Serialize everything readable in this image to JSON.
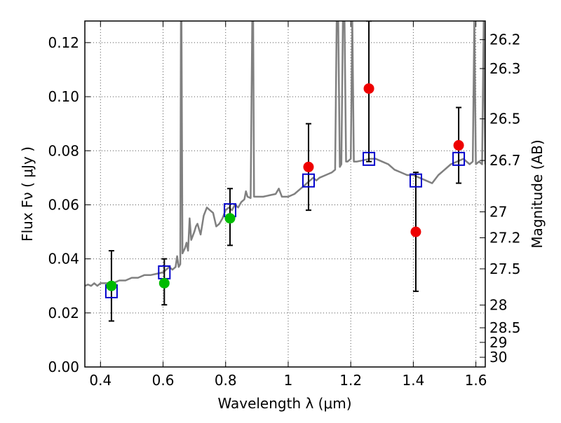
{
  "chart_data": {
    "type": "scatter",
    "title": "",
    "xlabel": "Wavelength  λ (μm)",
    "ylabel": "Flux  Fν  ( μJy )",
    "y2label": "Magnitude (AB)",
    "xlim": [
      0.35,
      1.63
    ],
    "ylim": [
      0.0,
      0.128
    ],
    "grid": true,
    "legend": "none",
    "x_ticks": [
      {
        "v": 0.4,
        "label": "0.4"
      },
      {
        "v": 0.6,
        "label": "0.6"
      },
      {
        "v": 0.8,
        "label": "0.8"
      },
      {
        "v": 1.0,
        "label": "1"
      },
      {
        "v": 1.2,
        "label": "1.2"
      },
      {
        "v": 1.4,
        "label": "1.4"
      },
      {
        "v": 1.6,
        "label": "1.6"
      }
    ],
    "y_ticks": [
      {
        "v": 0.0,
        "label": "0.00"
      },
      {
        "v": 0.02,
        "label": "0.02"
      },
      {
        "v": 0.04,
        "label": "0.04"
      },
      {
        "v": 0.06,
        "label": "0.06"
      },
      {
        "v": 0.08,
        "label": "0.08"
      },
      {
        "v": 0.1,
        "label": "0.10"
      },
      {
        "v": 0.12,
        "label": "0.12"
      }
    ],
    "y2_ticks": [
      {
        "flux": 0.1211,
        "label": "26.2"
      },
      {
        "flux": 0.1104,
        "label": "26.3"
      },
      {
        "flux": 0.0918,
        "label": "26.5"
      },
      {
        "flux": 0.0764,
        "label": "26.7"
      },
      {
        "flux": 0.0574,
        "label": "27"
      },
      {
        "flux": 0.0478,
        "label": "27.2"
      },
      {
        "flux": 0.0363,
        "label": "27.5"
      },
      {
        "flux": 0.0229,
        "label": "28"
      },
      {
        "flux": 0.0145,
        "label": "28.5"
      },
      {
        "flux": 0.0091,
        "label": "29"
      },
      {
        "flux": 0.0036,
        "label": "30"
      }
    ],
    "colors": {
      "spectrum": "#808080",
      "model_box": "#0000cc",
      "green_point": "#00bb00",
      "red_point": "#ee0000",
      "errorbar": "#000000",
      "grid": "#555555"
    },
    "series": [
      {
        "kind": "line",
        "points": [
          [
            0.35,
            0.03
          ],
          [
            0.36,
            0.0305
          ],
          [
            0.37,
            0.03
          ],
          [
            0.38,
            0.031
          ],
          [
            0.39,
            0.03
          ],
          [
            0.4,
            0.031
          ],
          [
            0.42,
            0.031
          ],
          [
            0.44,
            0.031
          ],
          [
            0.46,
            0.032
          ],
          [
            0.48,
            0.032
          ],
          [
            0.5,
            0.033
          ],
          [
            0.52,
            0.033
          ],
          [
            0.54,
            0.034
          ],
          [
            0.56,
            0.034
          ],
          [
            0.58,
            0.0345
          ],
          [
            0.6,
            0.035
          ],
          [
            0.61,
            0.036
          ],
          [
            0.62,
            0.037
          ],
          [
            0.63,
            0.036
          ],
          [
            0.64,
            0.037
          ],
          [
            0.645,
            0.041
          ],
          [
            0.65,
            0.037
          ],
          [
            0.655,
            0.038
          ],
          [
            0.657,
            0.128
          ],
          [
            0.659,
            0.128
          ],
          [
            0.662,
            0.042
          ],
          [
            0.67,
            0.044
          ],
          [
            0.675,
            0.046
          ],
          [
            0.68,
            0.043
          ],
          [
            0.685,
            0.055
          ],
          [
            0.69,
            0.047
          ],
          [
            0.7,
            0.05
          ],
          [
            0.705,
            0.052
          ],
          [
            0.71,
            0.053
          ],
          [
            0.72,
            0.049
          ],
          [
            0.73,
            0.056
          ],
          [
            0.74,
            0.059
          ],
          [
            0.75,
            0.058
          ],
          [
            0.76,
            0.057
          ],
          [
            0.77,
            0.052
          ],
          [
            0.78,
            0.053
          ],
          [
            0.79,
            0.055
          ],
          [
            0.8,
            0.058
          ],
          [
            0.81,
            0.059
          ],
          [
            0.82,
            0.058
          ],
          [
            0.83,
            0.06
          ],
          [
            0.84,
            0.059
          ],
          [
            0.85,
            0.061
          ],
          [
            0.86,
            0.062
          ],
          [
            0.865,
            0.065
          ],
          [
            0.87,
            0.063
          ],
          [
            0.88,
            0.0625
          ],
          [
            0.885,
            0.128
          ],
          [
            0.888,
            0.128
          ],
          [
            0.891,
            0.063
          ],
          [
            0.9,
            0.063
          ],
          [
            0.92,
            0.063
          ],
          [
            0.94,
            0.0635
          ],
          [
            0.96,
            0.064
          ],
          [
            0.97,
            0.066
          ],
          [
            0.98,
            0.063
          ],
          [
            1.0,
            0.063
          ],
          [
            1.02,
            0.064
          ],
          [
            1.04,
            0.066
          ],
          [
            1.05,
            0.067
          ],
          [
            1.06,
            0.068
          ],
          [
            1.07,
            0.069
          ],
          [
            1.08,
            0.07
          ],
          [
            1.09,
            0.069
          ],
          [
            1.1,
            0.07
          ],
          [
            1.12,
            0.071
          ],
          [
            1.14,
            0.072
          ],
          [
            1.15,
            0.073
          ],
          [
            1.155,
            0.128
          ],
          [
            1.16,
            0.128
          ],
          [
            1.165,
            0.074
          ],
          [
            1.17,
            0.075
          ],
          [
            1.175,
            0.128
          ],
          [
            1.18,
            0.128
          ],
          [
            1.185,
            0.076
          ],
          [
            1.19,
            0.076
          ],
          [
            1.2,
            0.077
          ],
          [
            1.205,
            0.128
          ],
          [
            1.21,
            0.076
          ],
          [
            1.22,
            0.076
          ],
          [
            1.24,
            0.0765
          ],
          [
            1.26,
            0.077
          ],
          [
            1.28,
            0.077
          ],
          [
            1.3,
            0.076
          ],
          [
            1.32,
            0.075
          ],
          [
            1.34,
            0.073
          ],
          [
            1.36,
            0.072
          ],
          [
            1.38,
            0.071
          ],
          [
            1.4,
            0.071
          ],
          [
            1.42,
            0.07
          ],
          [
            1.44,
            0.069
          ],
          [
            1.46,
            0.068
          ],
          [
            1.48,
            0.071
          ],
          [
            1.5,
            0.073
          ],
          [
            1.52,
            0.075
          ],
          [
            1.54,
            0.076
          ],
          [
            1.56,
            0.077
          ],
          [
            1.58,
            0.075
          ],
          [
            1.59,
            0.076
          ],
          [
            1.595,
            0.128
          ],
          [
            1.6,
            0.075
          ],
          [
            1.61,
            0.076
          ],
          [
            1.62,
            0.075
          ],
          [
            1.625,
            0.128
          ],
          [
            1.63,
            0.075
          ]
        ]
      },
      {
        "kind": "squares",
        "points": [
          {
            "x": 0.435,
            "y": 0.028
          },
          {
            "x": 0.604,
            "y": 0.035
          },
          {
            "x": 0.814,
            "y": 0.058
          },
          {
            "x": 1.065,
            "y": 0.069
          },
          {
            "x": 1.258,
            "y": 0.077
          },
          {
            "x": 1.408,
            "y": 0.069
          },
          {
            "x": 1.545,
            "y": 0.077
          }
        ]
      },
      {
        "kind": "points",
        "color": "green",
        "points": [
          {
            "x": 0.435,
            "y": 0.03,
            "lo": 0.017,
            "hi": 0.043
          },
          {
            "x": 0.604,
            "y": 0.031,
            "lo": 0.023,
            "hi": 0.04
          },
          {
            "x": 0.814,
            "y": 0.055,
            "lo": 0.045,
            "hi": 0.066
          }
        ]
      },
      {
        "kind": "points",
        "color": "red",
        "points": [
          {
            "x": 1.065,
            "y": 0.074,
            "lo": 0.058,
            "hi": 0.09
          },
          {
            "x": 1.258,
            "y": 0.103,
            "lo": 0.076,
            "hi": 0.128
          },
          {
            "x": 1.408,
            "y": 0.05,
            "lo": 0.028,
            "hi": 0.072
          },
          {
            "x": 1.545,
            "y": 0.082,
            "lo": 0.068,
            "hi": 0.096
          }
        ]
      }
    ]
  }
}
